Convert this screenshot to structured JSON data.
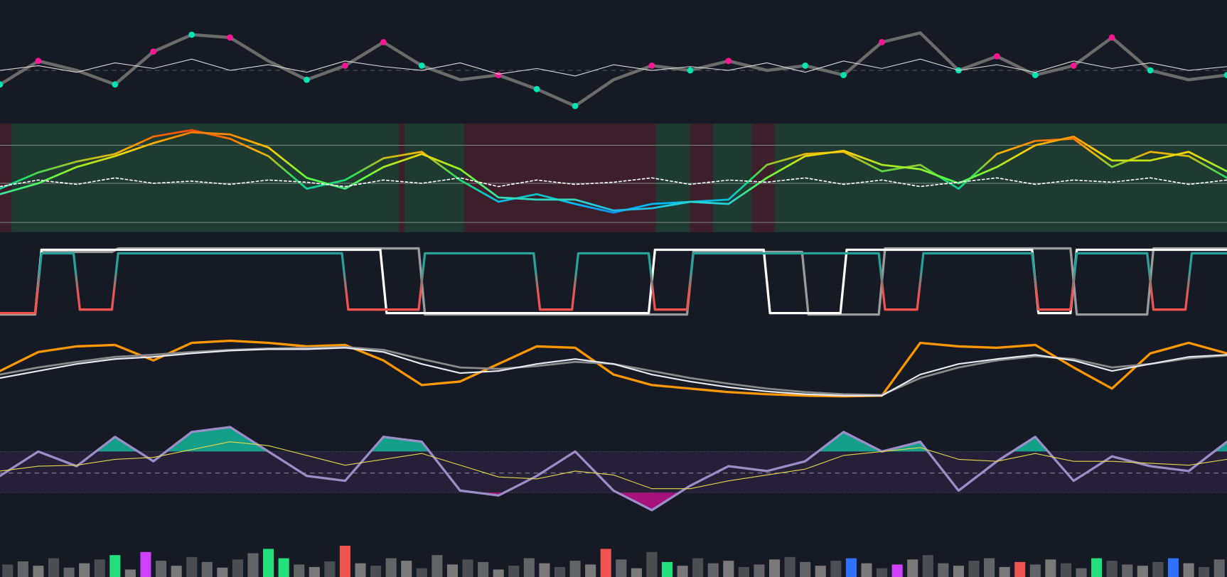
{
  "chart_data": [
    {
      "type": "line",
      "ylim": [
        0,
        100
      ],
      "hlines": [
        50
      ],
      "hline_color": "#5a5f6e",
      "hline_dash": true,
      "series": [
        {
          "color": "#6b6b6b",
          "values": [
            35,
            60,
            50,
            35,
            70,
            88,
            85,
            60,
            40,
            55,
            80,
            55,
            40,
            45,
            30,
            12,
            40,
            55,
            50,
            60,
            50,
            55,
            45,
            80,
            90,
            50,
            65,
            45,
            55,
            85,
            50,
            40,
            45
          ],
          "marker_colors": [
            "#00e5b0",
            "#ff1493",
            null,
            "#00e5b0",
            "#ff1493",
            "#00e5b0",
            "#ff1493",
            null,
            "#00e5b0",
            "#ff1493",
            "#ff1493",
            "#00e5b0",
            null,
            "#ff1493",
            "#00e5b0",
            "#00e5b0",
            null,
            "#ff1493",
            "#00e5b0",
            "#ff1493",
            null,
            "#00e5b0",
            "#00e5b0",
            "#ff1493",
            null,
            "#00e5b0",
            "#ff1493",
            "#00e5b0",
            "#ff1493",
            "#ff1493",
            "#00e5b0",
            null,
            "#00e5b0"
          ]
        },
        {
          "color": "#d8d8d8",
          "values": [
            50,
            55,
            48,
            58,
            52,
            62,
            50,
            56,
            48,
            60,
            54,
            50,
            58,
            46,
            52,
            44,
            56,
            50,
            54,
            50,
            58,
            48,
            60,
            52,
            62,
            50,
            56,
            48,
            60,
            52,
            58,
            50,
            54
          ]
        }
      ]
    },
    {
      "type": "line",
      "ylim": [
        0,
        100
      ],
      "background": "#1f3a30",
      "regions": [
        {
          "x": [
            0,
            0.3
          ],
          "color": "#3d1f2b"
        },
        {
          "x": [
            10.4,
            10.55
          ],
          "color": "#3d1f2b"
        },
        {
          "x": [
            12.1,
            17.1
          ],
          "color": "#3d1f2b"
        },
        {
          "x": [
            18.0,
            18.6
          ],
          "color": "#3d1f2b"
        },
        {
          "x": [
            19.6,
            20.2
          ],
          "color": "#3d1f2b"
        }
      ],
      "hlines": [
        80,
        45,
        9
      ],
      "hline_color": "#8a9a92",
      "series": [
        {
          "colors": [
            "#ff2a00",
            "#ffb000",
            "#22e060",
            "#00b8ff",
            "#1030d0"
          ],
          "values": [
            40,
            55,
            65,
            72,
            88,
            94,
            86,
            70,
            40,
            48,
            68,
            74,
            48,
            28,
            35,
            26,
            18,
            26,
            28,
            30,
            62,
            72,
            74,
            56,
            62,
            40,
            72,
            84,
            86,
            60,
            74,
            70,
            50
          ]
        },
        {
          "colors": [
            "#ff5a00",
            "#ffd000",
            "#60ff40",
            "#20d0e0",
            "#2050e0"
          ],
          "values": [
            35,
            45,
            60,
            70,
            82,
            92,
            90,
            78,
            50,
            40,
            60,
            72,
            58,
            32,
            30,
            30,
            20,
            22,
            28,
            26,
            50,
            70,
            75,
            62,
            58,
            45,
            60,
            80,
            88,
            66,
            66,
            74,
            56
          ]
        },
        {
          "color": "#ffffff",
          "dash": true,
          "values": [
            42,
            48,
            44,
            50,
            45,
            47,
            44,
            48,
            46,
            42,
            48,
            45,
            50,
            42,
            48,
            44,
            46,
            50,
            44,
            48,
            46,
            50,
            44,
            48,
            42,
            46,
            50,
            44,
            48,
            46,
            50,
            44,
            48
          ]
        }
      ]
    },
    {
      "type": "step",
      "ylim": [
        0,
        100
      ],
      "series": [
        {
          "color": "#9a9a9a",
          "values": [
            3,
            92,
            92,
            97,
            97,
            97,
            97,
            97,
            97,
            97,
            97,
            3,
            3,
            3,
            3,
            3,
            3,
            3,
            92,
            92,
            92,
            3,
            3,
            97,
            97,
            97,
            97,
            97,
            3,
            3,
            97,
            97,
            97
          ]
        },
        {
          "color": "#ffffff",
          "values": [
            5,
            95,
            95,
            95,
            95,
            95,
            95,
            95,
            95,
            95,
            5,
            5,
            5,
            5,
            5,
            5,
            5,
            95,
            95,
            95,
            5,
            5,
            95,
            95,
            95,
            95,
            95,
            5,
            95,
            95,
            95,
            95,
            95
          ]
        },
        {
          "colors": [
            "#2aa198",
            "#2aa198",
            "#ef5350",
            "#ef5350"
          ],
          "values": [
            5,
            90,
            10,
            90,
            90,
            90,
            90,
            90,
            90,
            10,
            10,
            90,
            90,
            90,
            10,
            90,
            90,
            10,
            90,
            90,
            90,
            90,
            90,
            10,
            90,
            90,
            90,
            10,
            90,
            90,
            10,
            90,
            90
          ]
        }
      ]
    },
    {
      "type": "line",
      "ylim": [
        0,
        100
      ],
      "series": [
        {
          "color": "#ff9800",
          "values": [
            45,
            72,
            80,
            82,
            60,
            85,
            88,
            85,
            80,
            82,
            60,
            25,
            30,
            55,
            80,
            78,
            40,
            25,
            20,
            15,
            12,
            10,
            9,
            10,
            85,
            80,
            78,
            82,
            50,
            20,
            70,
            85,
            70
          ]
        },
        {
          "color": "#8a8a8a",
          "values": [
            40,
            50,
            58,
            65,
            68,
            72,
            75,
            77,
            78,
            79,
            75,
            62,
            50,
            48,
            52,
            58,
            55,
            45,
            35,
            27,
            20,
            15,
            12,
            11,
            35,
            50,
            60,
            66,
            62,
            50,
            55,
            63,
            67
          ]
        },
        {
          "color": "#e8e8f0",
          "values": [
            35,
            45,
            55,
            62,
            65,
            70,
            74,
            76,
            76,
            78,
            72,
            55,
            42,
            45,
            55,
            62,
            55,
            40,
            30,
            22,
            16,
            12,
            10,
            10,
            40,
            55,
            62,
            68,
            60,
            45,
            55,
            65,
            68
          ]
        }
      ]
    },
    {
      "type": "line",
      "ylim": [
        0,
        100
      ],
      "band": [
        28,
        70
      ],
      "band_color": "#251f38",
      "hlines": [
        48
      ],
      "hline_color": "#9a9aa8",
      "hline_dash": true,
      "fill_above": {
        "level": 70,
        "color": "#14b89a"
      },
      "fill_below": {
        "level": 28,
        "color": "#c0108a"
      },
      "series": [
        {
          "color": "#9b8ec8",
          "values": [
            45,
            70,
            55,
            85,
            60,
            90,
            95,
            70,
            45,
            40,
            85,
            80,
            30,
            25,
            45,
            70,
            30,
            10,
            35,
            55,
            50,
            60,
            90,
            70,
            80,
            30,
            60,
            85,
            40,
            65,
            55,
            50,
            80
          ]
        },
        {
          "color": "#e6d84a",
          "values": [
            50,
            55,
            56,
            62,
            64,
            72,
            80,
            76,
            66,
            56,
            62,
            68,
            56,
            44,
            42,
            50,
            46,
            32,
            32,
            40,
            46,
            52,
            66,
            70,
            74,
            62,
            60,
            68,
            60,
            60,
            58,
            56,
            62
          ]
        }
      ]
    },
    {
      "type": "bar",
      "ylim": [
        0,
        60
      ],
      "color": "#7a7a7a",
      "highlights": [
        {
          "index": 7,
          "color": "#22e07a"
        },
        {
          "index": 9,
          "color": "#d040ff"
        },
        {
          "index": 17,
          "color": "#22e07a"
        },
        {
          "index": 18,
          "color": "#22e07a"
        },
        {
          "index": 22,
          "color": "#ef5350"
        },
        {
          "index": 39,
          "color": "#ef5350"
        },
        {
          "index": 43,
          "color": "#22e07a"
        },
        {
          "index": 55,
          "color": "#3070ff"
        },
        {
          "index": 58,
          "color": "#d040ff"
        },
        {
          "index": 66,
          "color": "#ef5350"
        },
        {
          "index": 71,
          "color": "#22e07a"
        },
        {
          "index": 76,
          "color": "#3070ff"
        }
      ],
      "values": [
        20,
        25,
        18,
        30,
        15,
        22,
        28,
        35,
        12,
        40,
        26,
        18,
        32,
        24,
        15,
        28,
        38,
        45,
        30,
        20,
        16,
        25,
        50,
        22,
        18,
        30,
        26,
        14,
        35,
        20,
        28,
        24,
        12,
        18,
        30,
        22,
        16,
        26,
        20,
        45,
        28,
        14,
        40,
        24,
        18,
        30,
        22,
        26,
        16,
        20,
        28,
        32,
        24,
        18,
        26,
        30,
        22,
        14,
        20,
        28,
        35,
        22,
        18,
        26,
        30,
        16,
        24,
        20,
        28,
        22,
        14,
        30,
        26,
        20,
        18,
        24,
        30,
        22,
        16,
        28
      ]
    }
  ]
}
